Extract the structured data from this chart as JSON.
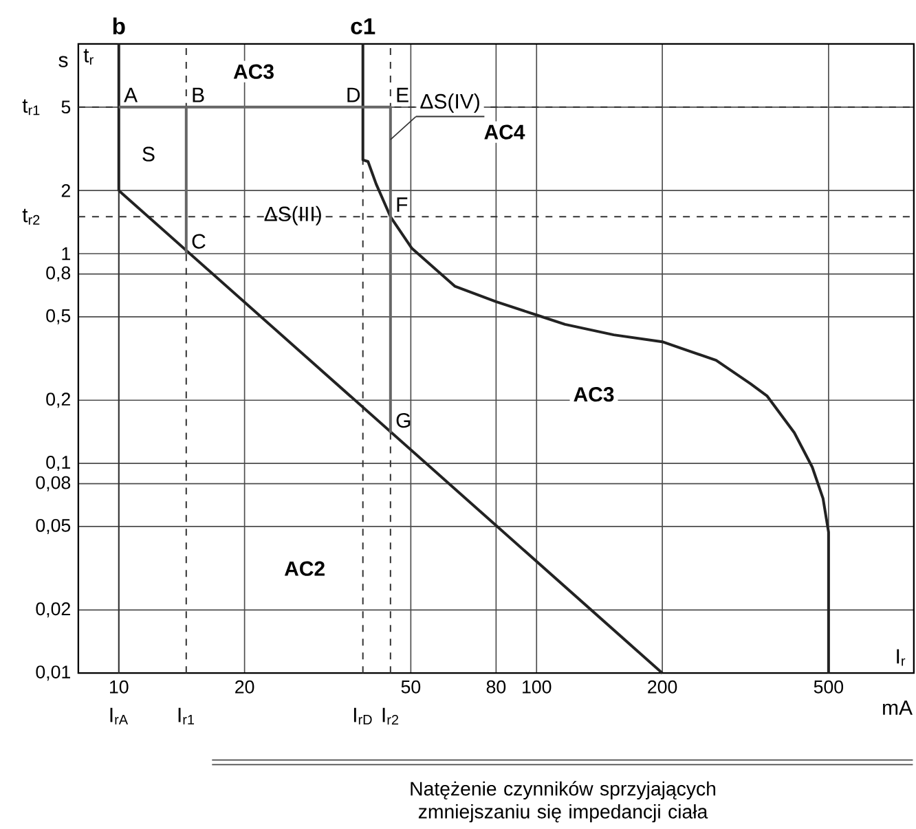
{
  "chart_data": {
    "type": "line",
    "xlabel": "I$_{r}$",
    "ylabel": "t$_{r}$",
    "log": "xy",
    "xlim": [
      8,
      800
    ],
    "ylim": [
      0.01,
      10
    ],
    "xticks": [
      10,
      20,
      50,
      80,
      100,
      200,
      500
    ],
    "yticks": [
      {
        "value": 0.01,
        "label": "0,01"
      },
      {
        "value": 0.02,
        "label": "0,02"
      },
      {
        "value": 0.05,
        "label": "0,05"
      },
      {
        "value": 0.08,
        "label": "0,08"
      },
      {
        "value": 0.1,
        "label": "0,1"
      },
      {
        "value": 0.2,
        "label": "0,2"
      },
      {
        "value": 0.5,
        "label": "0,5"
      },
      {
        "value": 0.8,
        "label": "0,8"
      },
      1,
      2,
      5
    ],
    "grid": true,
    "legend": false,
    "marker": "none",
    "line_style": "solid",
    "series": [
      {
        "name": "b",
        "color": "#222222",
        "x": [
          10,
          10
        ],
        "values": [
          2,
          10
        ]
      },
      {
        "name": "c1",
        "color": "#222222",
        "x": [
          38.4,
          38.4,
          39.5,
          41.3,
          44.7,
          50.3,
          63.7,
          80,
          100,
          117,
          153,
          200,
          269,
          325,
          356,
          414,
          457,
          485,
          500,
          500
        ],
        "values": [
          10,
          2.8,
          2.75,
          2.15,
          1.5,
          1.06,
          0.7,
          0.59,
          0.51,
          0.46,
          0.41,
          0.38,
          0.31,
          0.24,
          0.21,
          0.14,
          0.096,
          0.068,
          0.047,
          0.01
        ]
      },
      {
        "color": "#222222",
        "x": [
          10,
          200
        ],
        "values": [
          2,
          0.01
        ]
      },
      {
        "color": "#666666",
        "x": [
          10,
          44.7,
          44.7
        ],
        "values": [
          5,
          5,
          0.14
        ]
      },
      {
        "color": "#666666",
        "x": [
          14.5,
          14.5
        ],
        "values": [
          5,
          1
        ]
      }
    ],
    "ref_lines": [
      {
        "axis": "x",
        "value": 10,
        "label": "I$_{rA}$",
        "line_style": "solid"
      },
      {
        "axis": "x",
        "value": 14.5,
        "label": "I$_{r1}$",
        "line_style": "dashed"
      },
      {
        "axis": "x",
        "value": 38.4,
        "label": "I$_{rD}$",
        "line_style": "dashed"
      },
      {
        "axis": "x",
        "value": 44.7,
        "label": "I$_{r2}$",
        "line_style": "dashed"
      },
      {
        "axis": "y",
        "value": 5,
        "label": "t$_{r1}$",
        "line_style": "dashed"
      },
      {
        "axis": "y",
        "value": 1.5,
        "label": "t$_{r2}$",
        "line_style": "dashed"
      }
    ],
    "annotations": [
      {
        "text": "A",
        "x": 10,
        "y": 5
      },
      {
        "text": "B",
        "x": 14.5,
        "y": 5
      },
      {
        "text": "C",
        "x": 14.5,
        "y": 1
      },
      {
        "text": "D",
        "x": 34,
        "y": 5
      },
      {
        "text": "E",
        "x": 44.7,
        "y": 5
      },
      {
        "text": "F",
        "x": 44.7,
        "y": 1.5
      },
      {
        "text": "G",
        "x": 44.7,
        "y": 0.14
      },
      "AC3",
      "S",
      "ΔS(III)",
      {
        "text": "ΔS(IV)",
        "x": 44.7,
        "y": 3.5
      },
      "AC4",
      "AC3",
      "AC2",
      "mA",
      "s",
      "Natężenie czynników sprzyjających zmniejszaniu się impedancji ciała"
    ]
  }
}
